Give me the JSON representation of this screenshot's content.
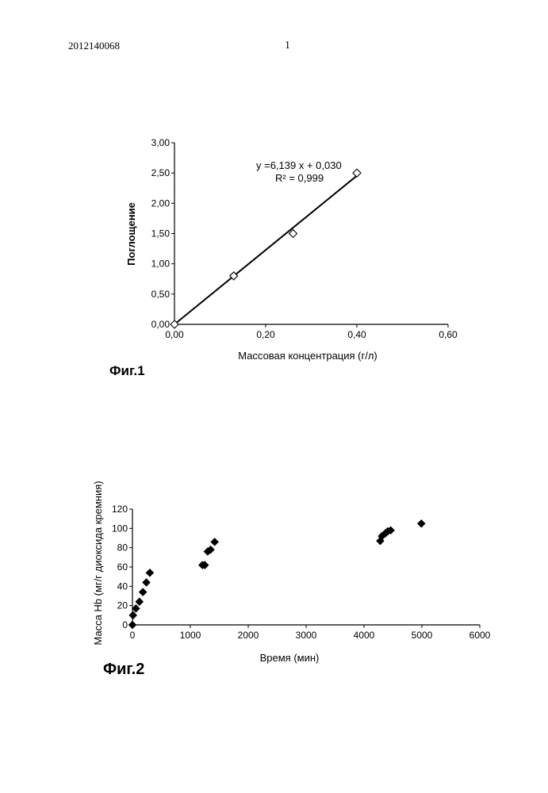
{
  "page": {
    "patent_number": "2012140068",
    "page_number": "1"
  },
  "figures": [
    {
      "label": "Фиг.1",
      "xlabel": "Массовая концентрация (г/л)",
      "ylabel": "Поглощение",
      "equation": "y =6,139 x + 0,030",
      "r_squared": "R² = 0,999",
      "xticks": [
        "0,00",
        "0,20",
        "0,40",
        "0,60"
      ],
      "yticks": [
        "0,00",
        "0,50",
        "1,00",
        "1,50",
        "2,00",
        "2,50",
        "3,00"
      ]
    },
    {
      "label": "Фиг.2",
      "xlabel": "Время (мин)",
      "ylabel": "Масса Hb (мг/г диоксида кремния)",
      "xticks": [
        "0",
        "1000",
        "2000",
        "3000",
        "4000",
        "5000",
        "6000"
      ],
      "yticks": [
        "0",
        "20",
        "40",
        "60",
        "80",
        "100",
        "120"
      ]
    }
  ],
  "chart_data": [
    {
      "type": "scatter",
      "title": "",
      "xlabel": "Массовая концентрация (г/л)",
      "ylabel": "Поглощение",
      "xlim": [
        0,
        0.6
      ],
      "ylim": [
        0,
        3.0
      ],
      "marker": "open-diamond",
      "series": [
        {
          "x": [
            0.0,
            0.13,
            0.26,
            0.4
          ],
          "y": [
            0.0,
            0.8,
            1.5,
            2.5
          ]
        }
      ],
      "trendline": {
        "slope": 6.139,
        "intercept": 0.03,
        "r2": 0.999,
        "x_range": [
          0.0,
          0.4
        ]
      },
      "grid": false
    },
    {
      "type": "scatter",
      "title": "",
      "xlabel": "Время (мин)",
      "ylabel": "Масса Hb (мг/г диоксида кремния)",
      "xlim": [
        0,
        6000
      ],
      "ylim": [
        0,
        120
      ],
      "marker": "filled-diamond",
      "series": [
        {
          "x": [
            0,
            10,
            60,
            120,
            180,
            240,
            300,
            1210,
            1250,
            1300,
            1350,
            1420,
            4280,
            4310,
            4370,
            4410,
            4460,
            4990
          ],
          "y": [
            0,
            10,
            17,
            24,
            34,
            44,
            54,
            62,
            62,
            76,
            78,
            86,
            87,
            92,
            95,
            97,
            98,
            105
          ]
        }
      ],
      "grid": false
    }
  ]
}
